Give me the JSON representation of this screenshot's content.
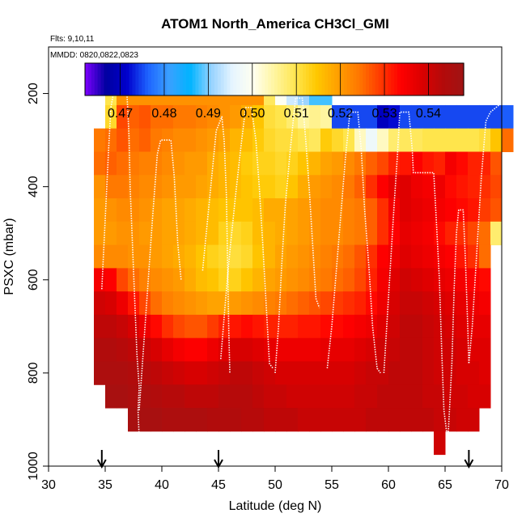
{
  "chart_data": {
    "type": "heatmap",
    "title": "ATOM1 North_America CH3Cl_GMI",
    "subtitle_flights": "Flts: 9,10,11",
    "subtitle_dates": "MMDD: 0820,0822,0823",
    "xlabel": "Latitude (deg N)",
    "ylabel": "PSXC (mbar)",
    "xlim": [
      30,
      70
    ],
    "ylim": [
      1000,
      100
    ],
    "x_ticks": [
      "30",
      "35",
      "40",
      "45",
      "50",
      "55",
      "60",
      "65",
      "70"
    ],
    "y_ticks": [
      "200",
      "400",
      "600",
      "800",
      "1000"
    ],
    "colorbar": {
      "min": 0.462,
      "max": 0.548,
      "tick_labels": [
        "0.47",
        "0.48",
        "0.49",
        "0.50",
        "0.51",
        "0.52",
        "0.53",
        "0.54"
      ],
      "tick_values": [
        0.47,
        0.48,
        0.49,
        0.5,
        0.51,
        0.52,
        0.53,
        0.54
      ],
      "colors": [
        "#7f00ff",
        "#0000a0",
        "#0000cd",
        "#1e64ff",
        "#3aa0ff",
        "#00b4ff",
        "#96d2ff",
        "#e6f5ff",
        "#fffff0",
        "#fff5a0",
        "#ffe650",
        "#ffc800",
        "#ffa000",
        "#ff7800",
        "#ff3c00",
        "#ff0000",
        "#dc0000",
        "#b40a0a",
        "#a01414"
      ]
    },
    "arrow_latitudes": [
      34.7,
      45,
      67.1
    ],
    "lat_bins_start": 34,
    "lat_bin_width": 1,
    "pressure_bins_start": 175,
    "pressure_bin_width": 50,
    "grid_rows": [
      {
        "p": 175,
        "start": 35,
        "values": [
          0.51,
          0.521,
          0.521,
          0.521,
          0.521,
          0.521,
          0.521,
          0.521,
          0.521,
          0.521,
          0.521,
          0.521,
          0.521,
          0.521,
          0.509,
          0.5,
          0.494,
          0.491,
          0.488,
          0.488
        ]
      },
      {
        "p": 225,
        "start": 35,
        "values": [
          0.512,
          0.528,
          0.526,
          0.527,
          0.525,
          0.525,
          0.524,
          0.524,
          0.523,
          0.522,
          0.521,
          0.52,
          0.518,
          0.515,
          0.511,
          0.51,
          0.508,
          0.505,
          0.506,
          0.505,
          0.475,
          0.475,
          0.475,
          0.475,
          0.47,
          0.472,
          0.475,
          0.475,
          0.475,
          0.475,
          0.475,
          0.475,
          0.475,
          0.475,
          0.475,
          0.476
        ]
      },
      {
        "p": 275,
        "start": 34,
        "values": [
          0.524,
          0.525,
          0.527,
          0.525,
          0.526,
          0.524,
          0.523,
          0.522,
          0.522,
          0.521,
          0.52,
          0.519,
          0.517,
          0.516,
          0.514,
          0.512,
          0.511,
          0.511,
          0.51,
          0.509,
          0.514,
          0.512,
          0.51,
          0.503,
          0.497,
          0.503,
          0.508,
          0.509,
          0.509,
          0.51,
          0.51,
          0.51,
          0.51,
          0.51,
          0.511,
          0.515,
          0.525
        ]
      },
      {
        "p": 325,
        "start": 34,
        "values": [
          0.525,
          0.526,
          0.525,
          0.524,
          0.523,
          0.523,
          0.522,
          0.521,
          0.52,
          0.52,
          0.518,
          0.517,
          0.516,
          0.514,
          0.513,
          0.513,
          0.512,
          0.513,
          0.515,
          0.517,
          0.519,
          0.52,
          0.522,
          0.524,
          0.526,
          0.528,
          0.531,
          0.532,
          0.534,
          0.532,
          0.531,
          0.535,
          0.533,
          0.531,
          0.531,
          0.527
        ]
      },
      {
        "p": 375,
        "start": 34,
        "values": [
          0.521,
          0.524,
          0.524,
          0.523,
          0.522,
          0.522,
          0.521,
          0.52,
          0.52,
          0.519,
          0.518,
          0.517,
          0.516,
          0.515,
          0.514,
          0.514,
          0.513,
          0.515,
          0.518,
          0.52,
          0.521,
          0.522,
          0.524,
          0.526,
          0.53,
          0.534,
          0.537,
          0.538,
          0.536,
          0.535,
          0.536,
          0.533,
          0.532,
          0.531,
          0.53,
          0.528
        ]
      },
      {
        "p": 425,
        "start": 34,
        "values": [
          0.52,
          0.521,
          0.522,
          0.522,
          0.521,
          0.52,
          0.519,
          0.519,
          0.518,
          0.517,
          0.516,
          0.515,
          0.515,
          0.515,
          0.516,
          0.518,
          0.518,
          0.519,
          0.52,
          0.521,
          0.522,
          0.522,
          0.523,
          0.524,
          0.526,
          0.53,
          0.535,
          0.538,
          0.537,
          0.536,
          0.535,
          0.534,
          0.533,
          0.532,
          0.529,
          0.527
        ]
      },
      {
        "p": 475,
        "start": 34,
        "values": [
          0.52,
          0.52,
          0.521,
          0.521,
          0.52,
          0.52,
          0.519,
          0.519,
          0.518,
          0.517,
          0.516,
          0.513,
          0.512,
          0.513,
          0.516,
          0.517,
          0.518,
          0.519,
          0.52,
          0.521,
          0.522,
          0.522,
          0.523,
          0.524,
          0.526,
          0.53,
          0.534,
          0.537,
          0.536,
          0.535,
          0.533,
          0.531,
          0.53,
          0.528,
          0.525,
          0.508
        ]
      },
      {
        "p": 525,
        "start": 34,
        "values": [
          0.522,
          0.522,
          0.522,
          0.521,
          0.521,
          0.52,
          0.519,
          0.518,
          0.517,
          0.515,
          0.513,
          0.512,
          0.511,
          0.512,
          0.515,
          0.517,
          0.519,
          0.52,
          0.521,
          0.522,
          0.523,
          0.524,
          0.525,
          0.527,
          0.53,
          0.534,
          0.536,
          0.538,
          0.537,
          0.536,
          0.535,
          0.534,
          0.532,
          0.53,
          0.525
        ]
      },
      {
        "p": 575,
        "start": 34,
        "values": [
          0.535,
          0.534,
          0.528,
          0.525,
          0.523,
          0.522,
          0.521,
          0.52,
          0.518,
          0.516,
          0.515,
          0.513,
          0.513,
          0.515,
          0.517,
          0.519,
          0.52,
          0.521,
          0.522,
          0.523,
          0.524,
          0.525,
          0.526,
          0.528,
          0.531,
          0.535,
          0.538,
          0.54,
          0.539,
          0.538,
          0.537,
          0.536,
          0.535,
          0.534,
          0.533
        ]
      },
      {
        "p": 625,
        "start": 34,
        "values": [
          0.54,
          0.539,
          0.536,
          0.532,
          0.528,
          0.525,
          0.523,
          0.522,
          0.521,
          0.52,
          0.519,
          0.519,
          0.52,
          0.521,
          0.522,
          0.523,
          0.524,
          0.525,
          0.526,
          0.527,
          0.528,
          0.529,
          0.53,
          0.531,
          0.533,
          0.536,
          0.539,
          0.541,
          0.541,
          0.54,
          0.539,
          0.538,
          0.537,
          0.536,
          0.535
        ]
      },
      {
        "p": 675,
        "start": 34,
        "values": [
          0.542,
          0.542,
          0.541,
          0.539,
          0.536,
          0.533,
          0.53,
          0.528,
          0.527,
          0.527,
          0.529,
          0.531,
          0.532,
          0.533,
          0.532,
          0.531,
          0.531,
          0.531,
          0.532,
          0.532,
          0.533,
          0.533,
          0.534,
          0.535,
          0.536,
          0.538,
          0.54,
          0.542,
          0.542,
          0.541,
          0.54,
          0.539,
          0.538,
          0.537,
          0.537
        ]
      },
      {
        "p": 725,
        "start": 34,
        "values": [
          0.544,
          0.544,
          0.543,
          0.542,
          0.541,
          0.539,
          0.537,
          0.535,
          0.534,
          0.534,
          0.536,
          0.538,
          0.539,
          0.539,
          0.538,
          0.537,
          0.536,
          0.536,
          0.536,
          0.536,
          0.537,
          0.537,
          0.537,
          0.538,
          0.539,
          0.54,
          0.541,
          0.542,
          0.542,
          0.541,
          0.54,
          0.54,
          0.539,
          0.538,
          0.538
        ]
      },
      {
        "p": 775,
        "start": 34,
        "values": [
          0.545,
          0.545,
          0.545,
          0.544,
          0.543,
          0.542,
          0.541,
          0.54,
          0.539,
          0.539,
          0.54,
          0.541,
          0.542,
          0.542,
          0.541,
          0.54,
          0.539,
          0.539,
          0.539,
          0.539,
          0.539,
          0.539,
          0.539,
          0.54,
          0.541,
          0.541,
          0.542,
          0.542,
          0.542,
          0.541,
          0.54,
          0.54,
          0.539,
          0.539,
          0.538
        ]
      },
      {
        "p": 825,
        "start": 35,
        "values": [
          0.546,
          0.546,
          0.545,
          0.545,
          0.544,
          0.543,
          0.543,
          0.542,
          0.542,
          0.542,
          0.543,
          0.543,
          0.543,
          0.542,
          0.541,
          0.541,
          0.54,
          0.54,
          0.54,
          0.54,
          0.54,
          0.54,
          0.541,
          0.541,
          0.542,
          0.542,
          0.542,
          0.542,
          0.541,
          0.541,
          0.54,
          0.54,
          0.539,
          0.539
        ]
      },
      {
        "p": 875,
        "start": 37,
        "values": [
          0.546,
          0.546,
          0.546,
          0.545,
          0.545,
          0.545,
          0.545,
          0.544,
          0.544,
          0.544,
          0.543,
          0.543,
          0.542,
          0.542,
          0.542,
          0.541,
          0.541,
          0.541,
          0.541,
          0.541,
          0.541,
          0.542,
          0.542,
          0.542,
          0.542,
          0.542,
          0.542,
          0.541,
          0.541,
          0.54,
          0.54
        ]
      },
      {
        "p": 925,
        "start": 64,
        "values": [
          0.54
        ]
      }
    ],
    "flight_paths": [
      [
        [
          34.7,
          620
        ],
        [
          34.9,
          520
        ],
        [
          35.1,
          420
        ],
        [
          35.3,
          320
        ],
        [
          35.5,
          230
        ],
        [
          35.8,
          190
        ],
        [
          36.9,
          190
        ],
        [
          37.1,
          290
        ],
        [
          37.2,
          400
        ],
        [
          37.4,
          520
        ],
        [
          37.6,
          640
        ],
        [
          37.8,
          760
        ],
        [
          38.0,
          830
        ],
        [
          37.9,
          880
        ],
        [
          38.0,
          940
        ]
      ],
      [
        [
          38.0,
          880
        ],
        [
          38.4,
          740
        ],
        [
          38.8,
          600
        ],
        [
          39.2,
          460
        ],
        [
          39.6,
          330
        ],
        [
          39.9,
          300
        ],
        [
          40.8,
          300
        ],
        [
          41.1,
          380
        ],
        [
          41.4,
          520
        ],
        [
          41.7,
          600
        ]
      ],
      [
        [
          43.6,
          580
        ],
        [
          44.0,
          480
        ],
        [
          44.4,
          380
        ],
        [
          44.8,
          280
        ],
        [
          45.3,
          250
        ],
        [
          45.5,
          300
        ],
        [
          45.7,
          420
        ],
        [
          45.8,
          560
        ],
        [
          45.9,
          700
        ],
        [
          46.0,
          800
        ]
      ],
      [
        [
          45.2,
          770
        ],
        [
          45.6,
          650
        ],
        [
          46.0,
          540
        ],
        [
          46.5,
          420
        ],
        [
          47.0,
          310
        ],
        [
          47.4,
          230
        ],
        [
          47.9,
          230
        ],
        [
          48.3,
          300
        ],
        [
          48.6,
          400
        ],
        [
          48.9,
          520
        ],
        [
          49.2,
          650
        ],
        [
          49.5,
          780
        ],
        [
          49.8,
          790
        ]
      ],
      [
        [
          50.0,
          800
        ],
        [
          50.3,
          700
        ],
        [
          50.6,
          560
        ],
        [
          50.9,
          440
        ],
        [
          51.3,
          330
        ],
        [
          51.8,
          210
        ],
        [
          52.4,
          210
        ],
        [
          52.7,
          300
        ],
        [
          53.0,
          400
        ],
        [
          53.3,
          520
        ],
        [
          53.6,
          640
        ],
        [
          53.9,
          660
        ]
      ],
      [
        [
          54.6,
          790
        ],
        [
          55.0,
          700
        ],
        [
          55.4,
          580
        ],
        [
          55.8,
          460
        ],
        [
          56.2,
          340
        ],
        [
          56.6,
          240
        ],
        [
          57.3,
          240
        ],
        [
          57.6,
          320
        ],
        [
          57.9,
          450
        ],
        [
          58.3,
          580
        ],
        [
          58.6,
          700
        ],
        [
          59.0,
          790
        ],
        [
          59.3,
          800
        ]
      ],
      [
        [
          59.6,
          800
        ],
        [
          59.9,
          680
        ],
        [
          60.2,
          560
        ],
        [
          60.5,
          440
        ],
        [
          60.8,
          330
        ],
        [
          61.0,
          240
        ],
        [
          61.8,
          240
        ],
        [
          62.1,
          320
        ],
        [
          62.2,
          370
        ],
        [
          64.0,
          370
        ],
        [
          64.2,
          460
        ],
        [
          64.5,
          600
        ],
        [
          64.7,
          750
        ],
        [
          64.9,
          880
        ],
        [
          65.2,
          940
        ],
        [
          65.3,
          920
        ],
        [
          65.6,
          780
        ],
        [
          65.8,
          620
        ],
        [
          66.0,
          500
        ],
        [
          66.2,
          450
        ],
        [
          66.6,
          450
        ],
        [
          66.8,
          560
        ],
        [
          67.0,
          700
        ],
        [
          67.1,
          780
        ],
        [
          67.4,
          700
        ],
        [
          67.8,
          540
        ],
        [
          68.2,
          380
        ],
        [
          68.6,
          260
        ],
        [
          69.0,
          240
        ],
        [
          69.5,
          230
        ],
        [
          70.0,
          220
        ]
      ]
    ]
  }
}
